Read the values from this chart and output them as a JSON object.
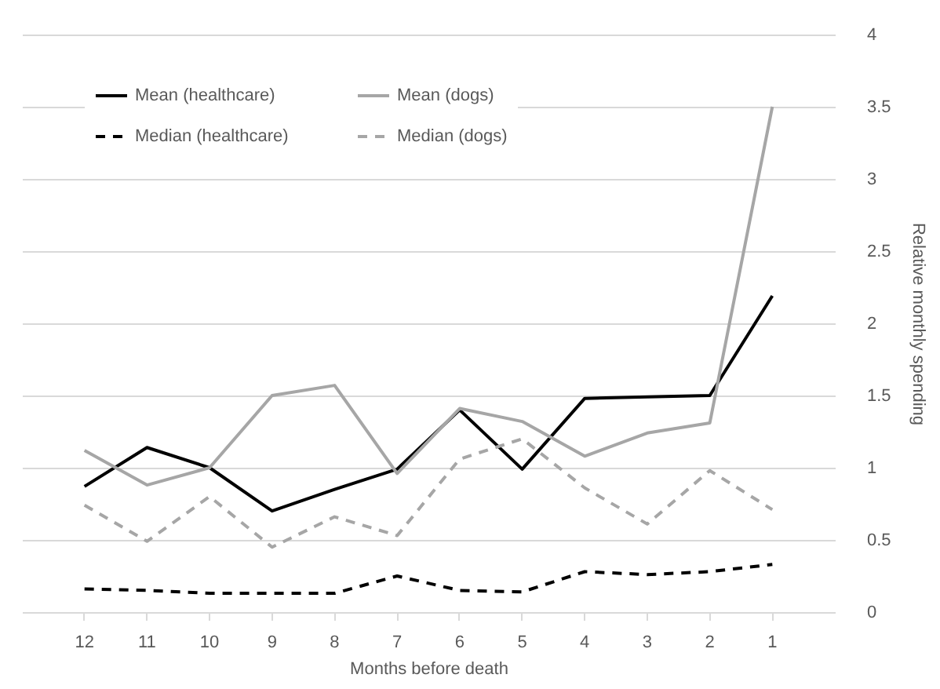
{
  "chart_data": {
    "type": "line",
    "xlabel": "Months before death",
    "ylabel": "Relative monthly spending",
    "categories": [
      "12",
      "11",
      "10",
      "9",
      "8",
      "7",
      "6",
      "5",
      "4",
      "3",
      "2",
      "1"
    ],
    "series": [
      {
        "name": "Mean (healthcare)",
        "color": "#000000",
        "line_style": "solid",
        "values": [
          0.87,
          1.14,
          1.0,
          0.7,
          0.85,
          0.99,
          1.4,
          0.99,
          1.48,
          1.49,
          1.5,
          2.19
        ]
      },
      {
        "name": "Mean (dogs)",
        "color": "#a6a6a6",
        "line_style": "solid",
        "values": [
          1.12,
          0.88,
          1.0,
          1.5,
          1.57,
          0.96,
          1.41,
          1.32,
          1.08,
          1.24,
          1.31,
          3.5
        ]
      },
      {
        "name": "Median (healthcare)",
        "color": "#000000",
        "line_style": "dashed",
        "values": [
          0.16,
          0.15,
          0.13,
          0.13,
          0.13,
          0.25,
          0.15,
          0.14,
          0.28,
          0.26,
          0.28,
          0.33
        ]
      },
      {
        "name": "Median (dogs)",
        "color": "#a6a6a6",
        "line_style": "dashed",
        "values": [
          0.74,
          0.49,
          0.8,
          0.45,
          0.66,
          0.53,
          1.06,
          1.2,
          0.86,
          0.61,
          0.98,
          0.71
        ]
      }
    ],
    "ylim": [
      0,
      4
    ],
    "yticks": [
      0,
      0.5,
      1,
      1.5,
      2,
      2.5,
      3,
      3.5,
      4
    ],
    "grid": "y",
    "legend": "top left",
    "marker": "none"
  }
}
